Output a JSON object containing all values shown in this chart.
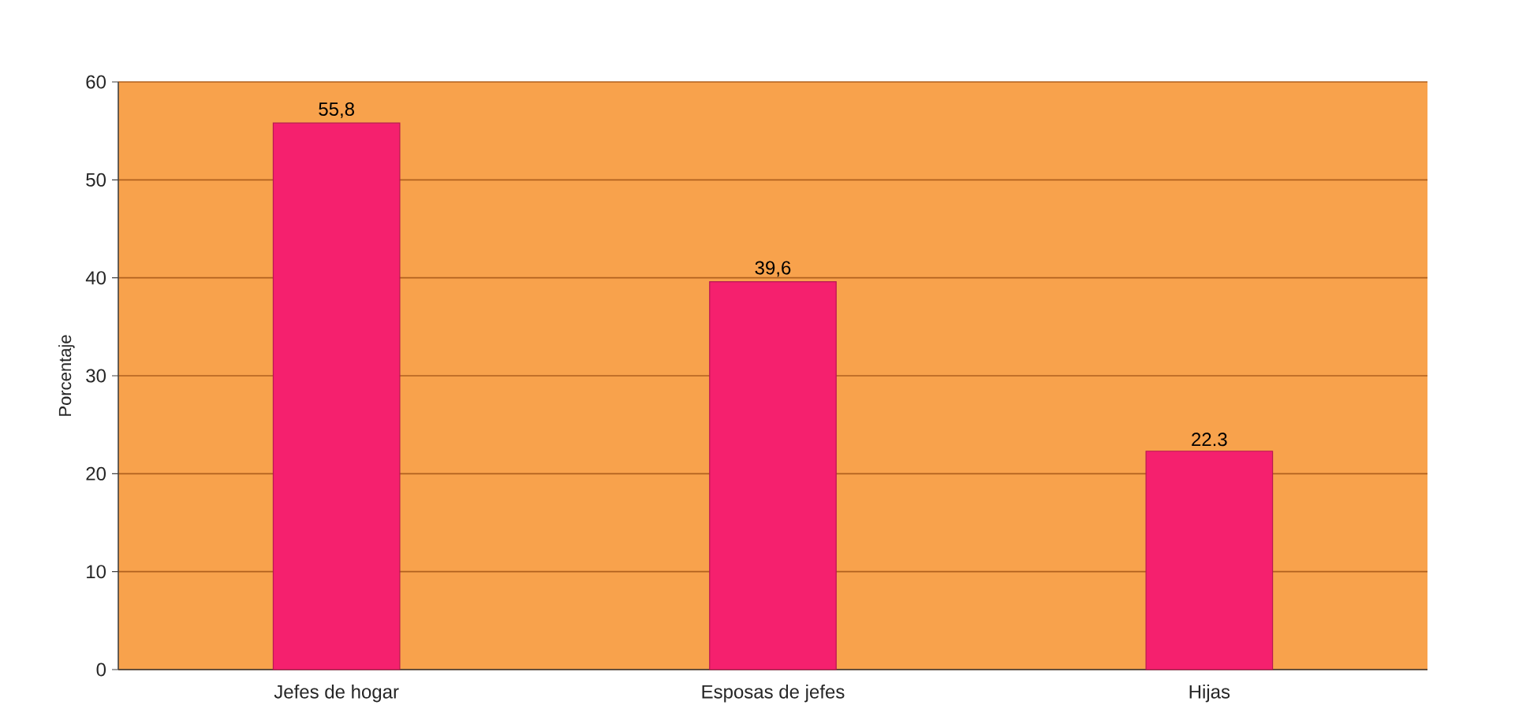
{
  "chart_data": {
    "type": "bar",
    "ylabel": "Porcentaje",
    "categories": [
      "Jefes de hogar",
      "Esposas de jefes",
      "Hijas"
    ],
    "values": [
      55.8,
      39.6,
      22.3
    ],
    "value_labels": [
      "55,8",
      "39,6",
      "22.3"
    ],
    "color": "#f5206e",
    "ylim": [
      0,
      60
    ],
    "yticks": [
      0,
      10,
      20,
      30,
      40,
      50,
      60
    ],
    "grid": "y"
  }
}
